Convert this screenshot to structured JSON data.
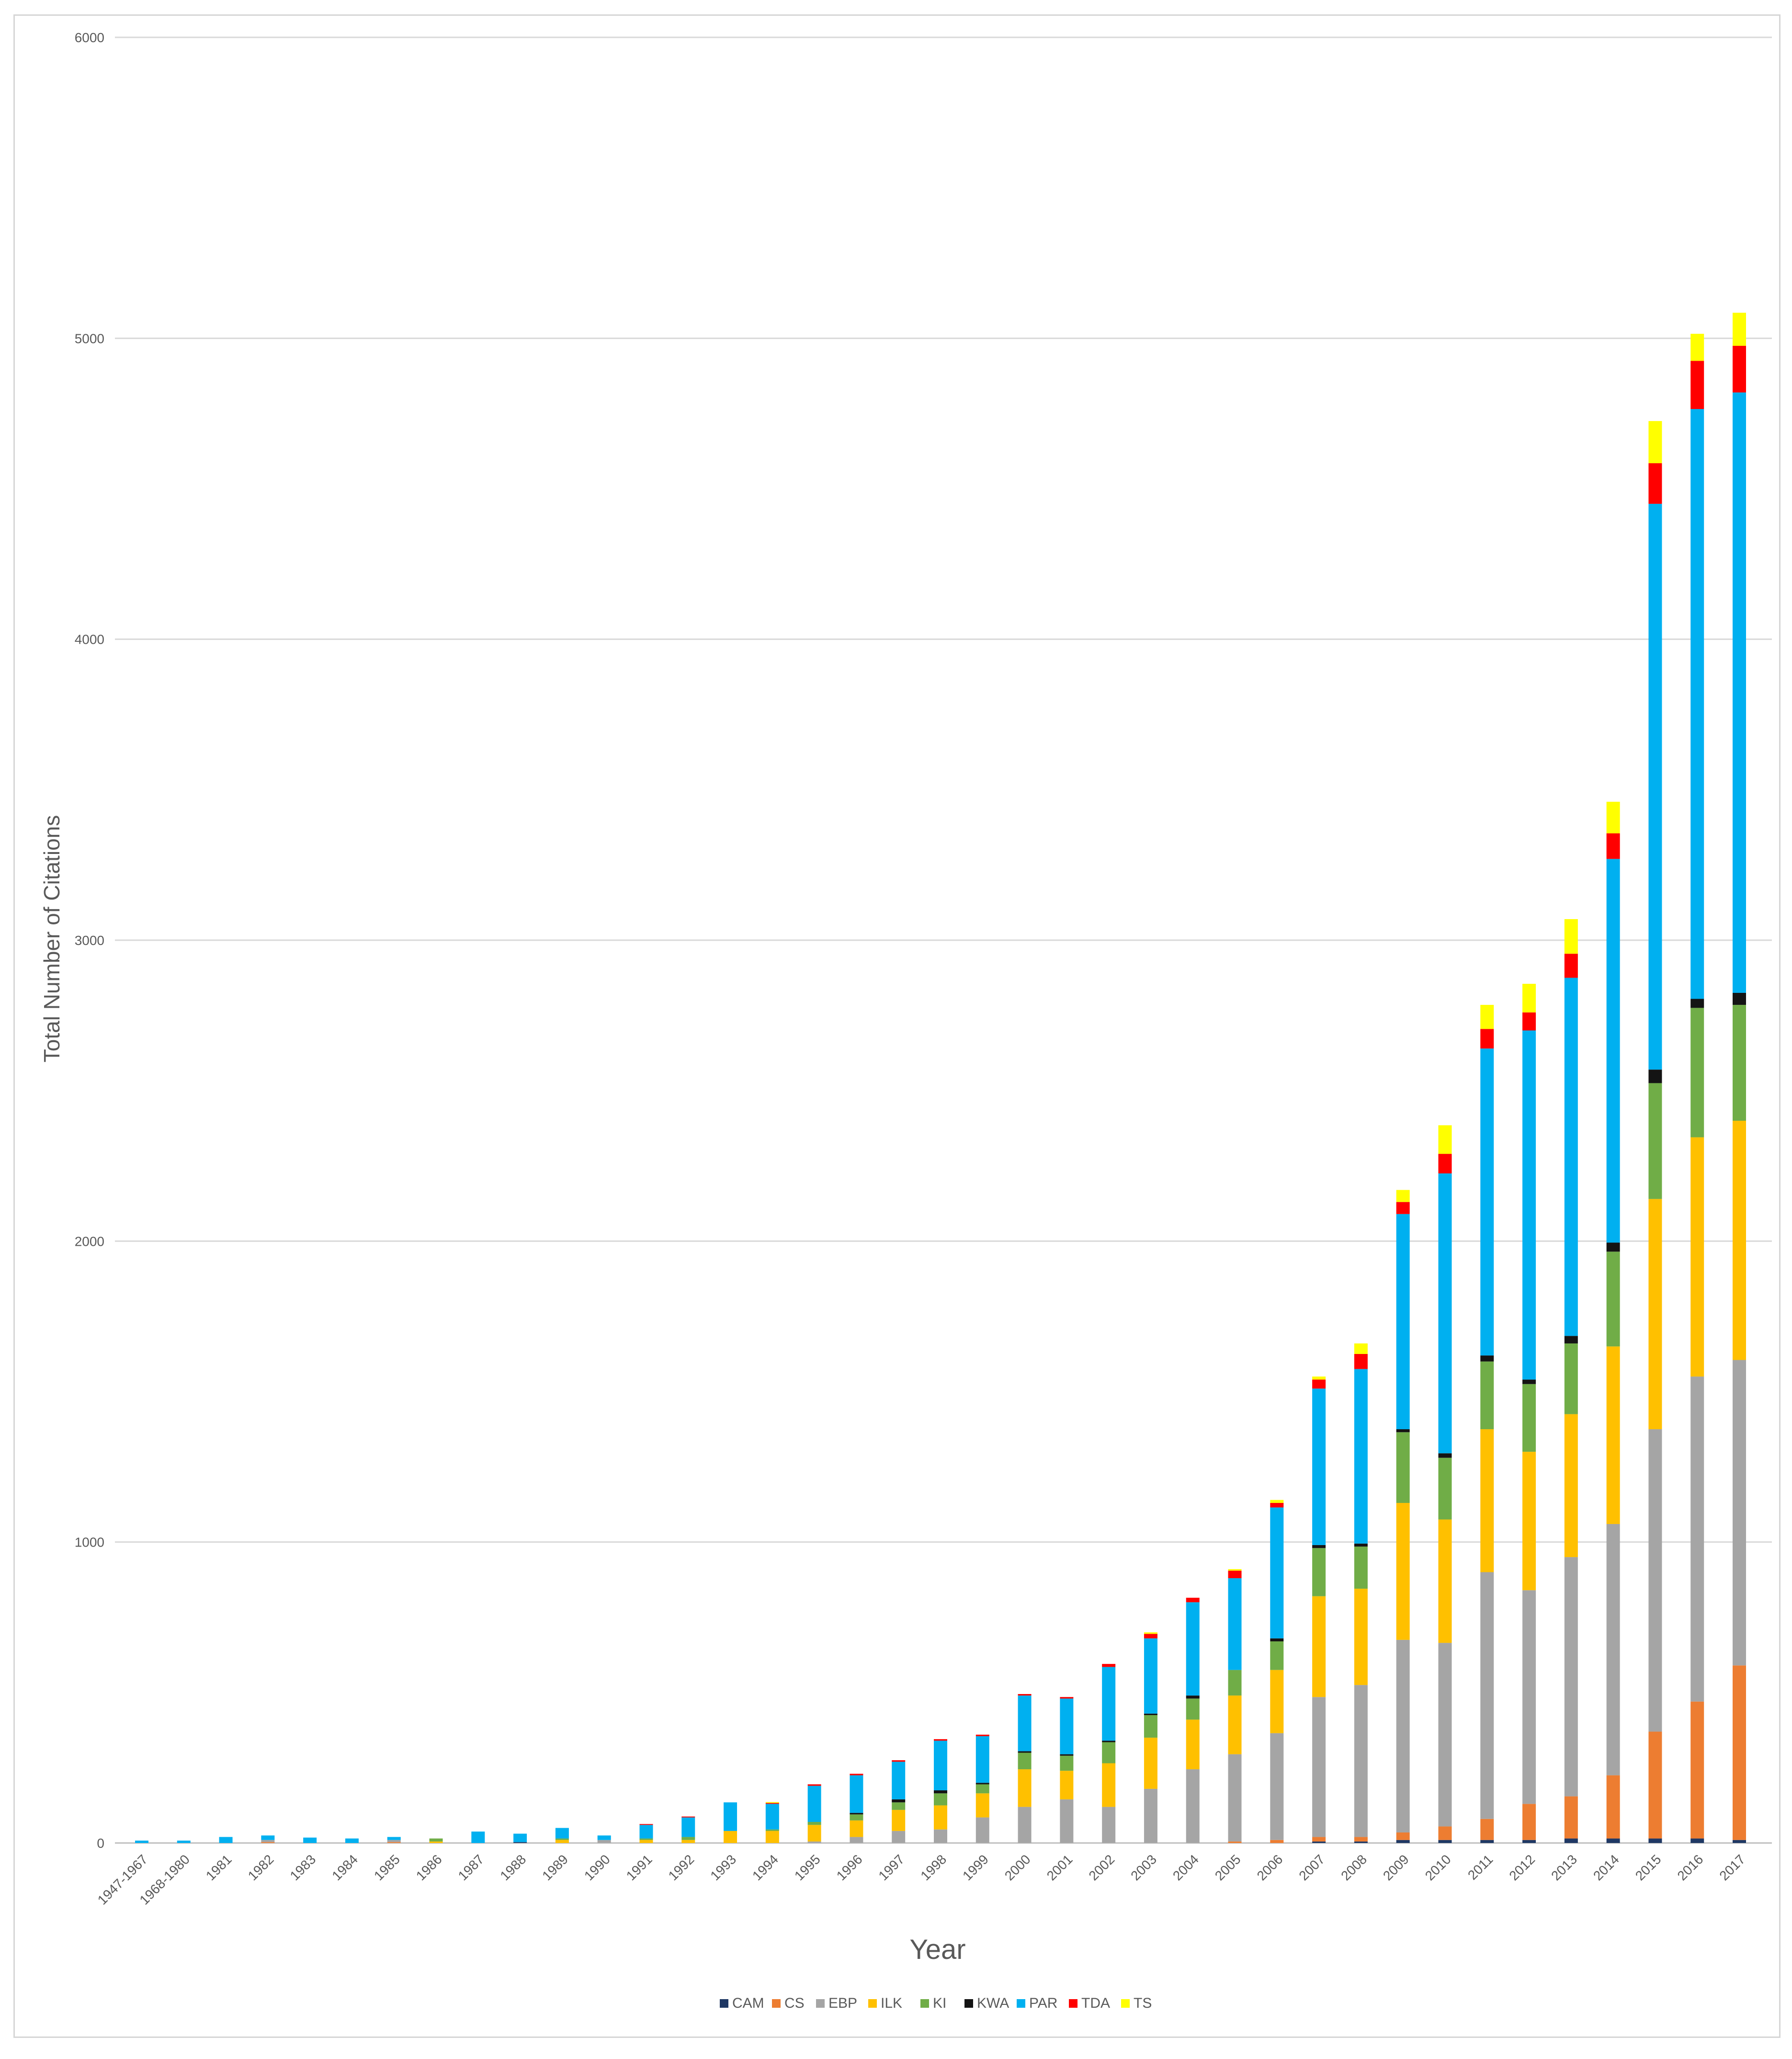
{
  "chart_data": {
    "type": "bar",
    "stacked": true,
    "title": "",
    "xlabel": "Year",
    "ylabel": "Total Number of Citations",
    "ylim": [
      0,
      6000
    ],
    "yticks": [
      0,
      1000,
      2000,
      3000,
      4000,
      5000,
      6000
    ],
    "grid": true,
    "legend_position": "bottom",
    "categories": [
      "1947-1967",
      "1968-1980",
      "1981",
      "1982",
      "1983",
      "1984",
      "1985",
      "1986",
      "1987",
      "1988",
      "1989",
      "1990",
      "1991",
      "1992",
      "1993",
      "1994",
      "1995",
      "1996",
      "1997",
      "1998",
      "1999",
      "2000",
      "2001",
      "2002",
      "2003",
      "2004",
      "2005",
      "2006",
      "2007",
      "2008",
      "2009",
      "2010",
      "2011",
      "2012",
      "2013",
      "2014",
      "2015",
      "2016",
      "2017"
    ],
    "series": [
      {
        "name": "CAM",
        "color": "#1f3864",
        "values": [
          0,
          0,
          0,
          0,
          0,
          0,
          0,
          0,
          0,
          3,
          0,
          0,
          0,
          0,
          0,
          0,
          0,
          0,
          0,
          0,
          0,
          0,
          0,
          0,
          0,
          0,
          0,
          0,
          5,
          5,
          10,
          10,
          10,
          10,
          15,
          15,
          15,
          15,
          10
        ]
      },
      {
        "name": "CS",
        "color": "#ed7d31",
        "values": [
          0,
          0,
          0,
          3,
          0,
          0,
          3,
          0,
          0,
          0,
          0,
          0,
          0,
          0,
          0,
          0,
          0,
          0,
          0,
          0,
          0,
          0,
          0,
          0,
          0,
          0,
          5,
          10,
          15,
          15,
          25,
          45,
          70,
          120,
          140,
          210,
          355,
          455,
          580
        ]
      },
      {
        "name": "EBP",
        "color": "#a5a5a5",
        "values": [
          0,
          0,
          0,
          7,
          0,
          0,
          7,
          0,
          0,
          0,
          0,
          10,
          0,
          0,
          0,
          0,
          5,
          20,
          40,
          45,
          85,
          120,
          145,
          120,
          180,
          245,
          290,
          355,
          465,
          505,
          640,
          610,
          820,
          710,
          795,
          835,
          1005,
          1080,
          1015
        ]
      },
      {
        "name": "ILK",
        "color": "#ffc000",
        "values": [
          0,
          0,
          0,
          0,
          0,
          0,
          0,
          5,
          0,
          0,
          10,
          0,
          10,
          10,
          40,
          40,
          55,
          55,
          70,
          80,
          80,
          125,
          95,
          145,
          170,
          165,
          195,
          210,
          335,
          320,
          455,
          410,
          475,
          460,
          475,
          590,
          765,
          795,
          795
        ]
      },
      {
        "name": "KI",
        "color": "#70ad47",
        "values": [
          0,
          0,
          0,
          0,
          0,
          0,
          0,
          10,
          0,
          0,
          5,
          0,
          5,
          10,
          0,
          5,
          10,
          20,
          25,
          40,
          30,
          55,
          50,
          70,
          75,
          70,
          85,
          95,
          160,
          140,
          235,
          205,
          225,
          225,
          235,
          315,
          385,
          430,
          385
        ]
      },
      {
        "name": "KWA",
        "color": "#141414",
        "values": [
          0,
          0,
          0,
          0,
          0,
          0,
          0,
          0,
          0,
          0,
          0,
          0,
          0,
          0,
          0,
          0,
          0,
          5,
          10,
          10,
          5,
          5,
          5,
          5,
          5,
          10,
          0,
          10,
          10,
          10,
          10,
          15,
          20,
          15,
          25,
          30,
          45,
          30,
          40
        ]
      },
      {
        "name": "PAR",
        "color": "#00b0f0",
        "values": [
          8,
          8,
          20,
          15,
          18,
          15,
          10,
          0,
          38,
          28,
          35,
          15,
          45,
          65,
          95,
          85,
          120,
          125,
          125,
          165,
          155,
          185,
          185,
          245,
          250,
          310,
          305,
          435,
          520,
          580,
          715,
          930,
          1020,
          1160,
          1190,
          1275,
          1880,
          1960,
          1995
        ]
      },
      {
        "name": "TDA",
        "color": "#ff0000",
        "values": [
          0,
          0,
          0,
          0,
          0,
          0,
          0,
          0,
          0,
          0,
          0,
          0,
          3,
          3,
          0,
          3,
          5,
          5,
          5,
          5,
          5,
          5,
          5,
          10,
          15,
          15,
          25,
          15,
          30,
          50,
          40,
          65,
          65,
          60,
          80,
          85,
          135,
          160,
          155
        ]
      },
      {
        "name": "TS",
        "color": "#ffff00",
        "values": [
          0,
          0,
          0,
          0,
          0,
          0,
          0,
          0,
          0,
          0,
          0,
          0,
          0,
          0,
          0,
          3,
          0,
          0,
          0,
          0,
          0,
          0,
          0,
          0,
          5,
          0,
          5,
          10,
          10,
          35,
          40,
          95,
          80,
          95,
          115,
          105,
          140,
          90,
          110
        ]
      }
    ]
  }
}
